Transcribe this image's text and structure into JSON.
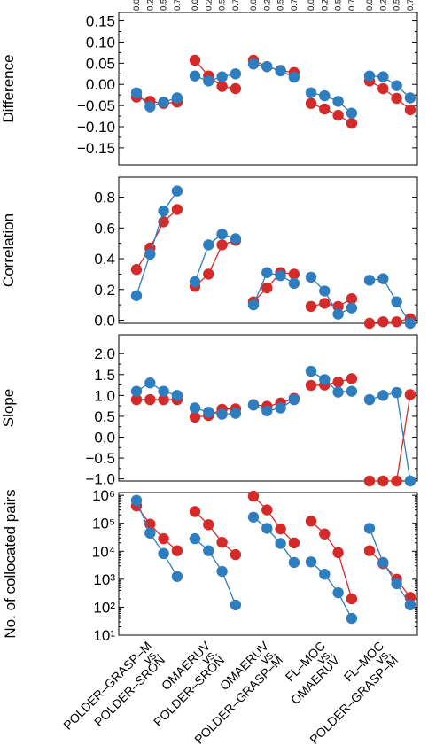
{
  "colors": {
    "red": "#d42a2a",
    "blue": "#2e7dbf",
    "frame": "#000000"
  },
  "top_ticks": [
    "0.00",
    "0.25",
    "0.50",
    "0.75"
  ],
  "chart_data": [
    {
      "type": "scatter",
      "ylabel": "Difference",
      "ylim": [
        -0.19,
        0.17
      ],
      "yticks": [
        -0.15,
        -0.1,
        -0.05,
        0.0,
        0.05,
        0.1,
        0.15
      ],
      "yticklabels": [
        "−0.15",
        "−0.10",
        "−0.05",
        "0.00",
        "0.05",
        "0.10",
        "0.15"
      ],
      "log": false,
      "series": [
        {
          "color": "red",
          "groups": [
            [
              -0.03,
              -0.04,
              -0.045,
              -0.042
            ],
            [
              0.057,
              0.02,
              -0.005,
              -0.01
            ],
            [
              0.057,
              0.042,
              0.033,
              0.028
            ],
            [
              -0.045,
              -0.058,
              -0.073,
              -0.092
            ],
            [
              0.008,
              -0.01,
              -0.033,
              -0.06
            ]
          ]
        },
        {
          "color": "blue",
          "groups": [
            [
              -0.02,
              -0.053,
              -0.042,
              -0.032
            ],
            [
              0.02,
              0.008,
              0.018,
              0.025
            ],
            [
              0.048,
              0.042,
              0.032,
              0.017
            ],
            [
              -0.02,
              -0.027,
              -0.04,
              -0.068
            ],
            [
              0.02,
              0.018,
              -0.003,
              -0.032
            ]
          ]
        }
      ]
    },
    {
      "type": "scatter",
      "ylabel": "Correlation",
      "ylim": [
        -0.02,
        0.93
      ],
      "yticks": [
        0.0,
        0.2,
        0.4,
        0.6,
        0.8
      ],
      "yticklabels": [
        "0.0",
        "0.2",
        "0.4",
        "0.6",
        "0.8"
      ],
      "log": false,
      "series": [
        {
          "color": "red",
          "groups": [
            [
              0.33,
              0.47,
              0.64,
              0.72
            ],
            [
              0.22,
              0.3,
              0.49,
              0.52
            ],
            [
              0.12,
              0.21,
              0.31,
              0.3
            ],
            [
              0.09,
              0.11,
              0.09,
              0.14
            ],
            [
              -0.02,
              -0.01,
              -0.01,
              0.01
            ]
          ]
        },
        {
          "color": "blue",
          "groups": [
            [
              0.16,
              0.43,
              0.71,
              0.84
            ],
            [
              0.25,
              0.49,
              0.56,
              0.53
            ],
            [
              0.1,
              0.31,
              0.29,
              0.24
            ],
            [
              0.28,
              0.19,
              0.04,
              0.08
            ],
            [
              0.26,
              0.27,
              0.12,
              -0.02
            ]
          ]
        }
      ]
    },
    {
      "type": "scatter",
      "ylabel": "Slope",
      "ylim": [
        -1.05,
        2.45
      ],
      "yticks": [
        -1.0,
        -0.5,
        0.0,
        0.5,
        1.0,
        1.5,
        2.0
      ],
      "yticklabels": [
        "−1.0",
        "−0.5",
        "0.0",
        "0.5",
        "1.0",
        "1.5",
        "2.0"
      ],
      "log": false,
      "series": [
        {
          "color": "red",
          "groups": [
            [
              0.9,
              0.9,
              0.9,
              0.9
            ],
            [
              0.48,
              0.52,
              0.67,
              0.68
            ],
            [
              0.78,
              0.74,
              0.82,
              0.93
            ],
            [
              1.24,
              1.25,
              1.32,
              1.4
            ],
            [
              -1.05,
              -1.05,
              -1.05,
              1.02
            ]
          ]
        },
        {
          "color": "blue",
          "groups": [
            [
              1.1,
              1.3,
              1.1,
              1.0
            ],
            [
              0.7,
              0.6,
              0.55,
              0.57
            ],
            [
              0.77,
              0.63,
              0.7,
              0.9
            ],
            [
              1.58,
              1.38,
              1.08,
              1.1
            ],
            [
              0.9,
              1.0,
              1.07,
              -1.05
            ]
          ]
        }
      ]
    },
    {
      "type": "scatter",
      "ylabel": "No. of collocated pairs",
      "ylim": [
        1,
        6.1
      ],
      "yticks": [
        1,
        2,
        3,
        4,
        5,
        6
      ],
      "yticklabels": [
        "10¹",
        "10²",
        "10³",
        "10⁴",
        "10⁵",
        "10⁶"
      ],
      "log": true,
      "series": [
        {
          "color": "red",
          "groups": [
            [
              5.62,
              4.97,
              4.45,
              4.02
            ],
            [
              5.42,
              4.95,
              4.32,
              3.88
            ],
            [
              5.97,
              5.48,
              4.8,
              4.3
            ],
            [
              5.08,
              4.62,
              3.95,
              2.3
            ],
            [
              4.02,
              3.56,
              3.0,
              2.35
            ]
          ]
        },
        {
          "color": "blue",
          "groups": [
            [
              5.82,
              4.65,
              3.92,
              3.1
            ],
            [
              4.45,
              4.02,
              3.28,
              2.08
            ],
            [
              5.22,
              4.82,
              4.28,
              3.6
            ],
            [
              3.62,
              3.18,
              2.52,
              1.6
            ],
            [
              4.82,
              3.6,
              2.84,
              2.08
            ]
          ]
        }
      ]
    }
  ],
  "x_category_labels": [
    "POLDER–GRASP–M",
    "vs.",
    "POLDER–SRON",
    "OMAERUV",
    "vs.",
    "POLDER–SRON",
    "OMAERUV",
    "vs.",
    "POLDER–GRASP–M",
    "FL–MOC",
    "vs.",
    "OMAERUV",
    "FL–MOC",
    "vs.",
    "POLDER–GRASP–M"
  ]
}
